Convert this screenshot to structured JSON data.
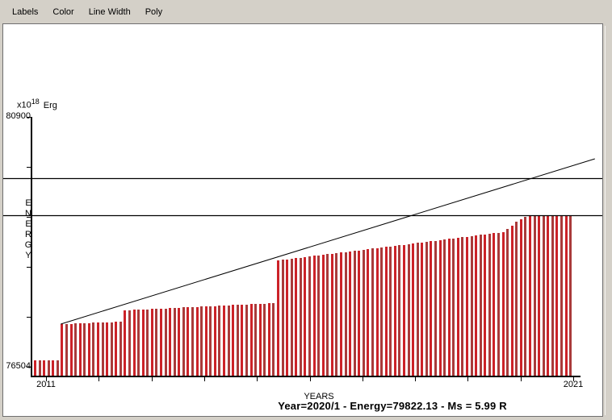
{
  "menu": {
    "items": [
      {
        "label": "Labels"
      },
      {
        "label": "Color"
      },
      {
        "label": "Line Width"
      },
      {
        "label": "Poly"
      }
    ]
  },
  "axes": {
    "y_unit_prefix": "x10",
    "y_unit_exp": "18",
    "y_unit_suffix": "Erg",
    "y_top_label": "80900",
    "y_bottom_label": "76504",
    "y_axis_title": "ENERGY",
    "x_axis_title": "YEARS",
    "x_left_label": "2011",
    "x_right_label": "2021"
  },
  "status": {
    "text": "Year=2020/1 - Energy=79822.13 - Ms = 5.99 R"
  },
  "colors": {
    "window_bg": "#d4d0c8",
    "chart_bg": "#ffffff",
    "bar": "#cc2228",
    "bar_alt": "#a93a3a",
    "axis": "#000000"
  },
  "chart_data": {
    "type": "bar",
    "title": "",
    "xlabel": "YEARS",
    "ylabel": "ENERGY",
    "y_unit": "x10^18 Erg",
    "x_range": [
      2011,
      2021
    ],
    "x_tick_labels": [
      "2011",
      "2021"
    ],
    "x_tick_count": 11,
    "ylim": [
      76504,
      80900
    ],
    "y_tick_labels": [
      "80900",
      "76504"
    ],
    "y_tick_count": 6,
    "grid": false,
    "legend": "none",
    "series_name": "Cumulative seismic energy release",
    "values": [
      76617,
      76617,
      76617,
      76617,
      76617,
      76617,
      77256,
      77259,
      77262,
      77266,
      77269,
      77272,
      77275,
      77278,
      77281,
      77284,
      77287,
      77290,
      77294,
      77298,
      77497,
      77501,
      77505,
      77509,
      77512,
      77516,
      77520,
      77524,
      77528,
      77532,
      77536,
      77539,
      77543,
      77547,
      77551,
      77555,
      77559,
      77563,
      77566,
      77570,
      77574,
      77578,
      77582,
      77586,
      77590,
      77593,
      77597,
      77601,
      77605,
      77609,
      77613,
      77617,
      77620,
      77624,
      78376,
      78386,
      78396,
      78406,
      78415,
      78425,
      78435,
      78445,
      78455,
      78465,
      78474,
      78484,
      78494,
      78504,
      78514,
      78524,
      78533,
      78543,
      78553,
      78563,
      78573,
      78583,
      78592,
      78602,
      78612,
      78622,
      78632,
      78642,
      78651,
      78661,
      78671,
      78681,
      78691,
      78701,
      78710,
      78720,
      78730,
      78745,
      78755,
      78765,
      78774,
      78784,
      78794,
      78804,
      78814,
      78823,
      78833,
      78843,
      78853,
      78862,
      78872,
      78930,
      78990,
      79050,
      79105,
      79140,
      79156,
      79156,
      79156,
      79156,
      79156,
      79156,
      79156,
      79156,
      79156,
      79156
    ],
    "hlines": [
      79822.13,
      79163
    ],
    "trend_line": {
      "x1_year": 2011.28,
      "y1": 77256,
      "x2_year": 2021.41,
      "y2": 80163
    },
    "selected_point": {
      "year": "2020/1",
      "energy": "79822.13",
      "ms": "5.99"
    }
  }
}
